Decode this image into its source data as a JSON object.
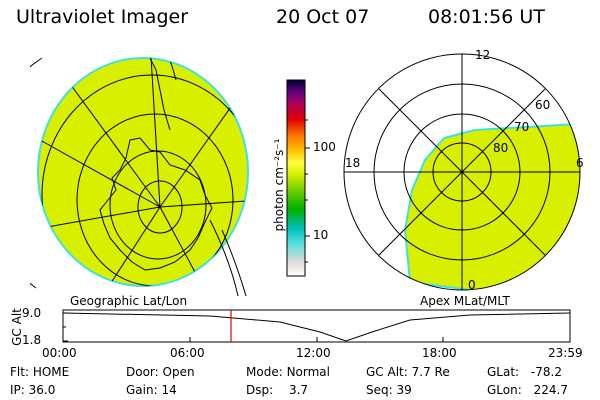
{
  "header": {
    "instrument": "Ultraviolet Imager",
    "date": "20 Oct 07",
    "time": "08:01:56 UT"
  },
  "colorbar": {
    "unit_label": "photon cm⁻²s⁻¹",
    "ticks": [
      "100",
      "10"
    ]
  },
  "geo_panel": {
    "label": "Geographic Lat/Lon"
  },
  "polar_panel": {
    "label": "Apex MLat/MLT",
    "hour_labels": [
      "12",
      "18",
      "6",
      "0"
    ],
    "lat_labels": [
      "60",
      "70",
      "80"
    ]
  },
  "altitude_plot": {
    "ylabel": "GC Alt",
    "yticks": [
      "9.0",
      "1.8"
    ],
    "xticks": [
      "00:00",
      "06:00",
      "12:00",
      "18:00",
      "23:59"
    ],
    "marker_time": "08:01:56"
  },
  "status": {
    "filter_label": "Flt:",
    "filter_value": "HOME",
    "ip_label": "IP:",
    "ip_value": "36.0",
    "door_label": "Door:",
    "door_value": "Open",
    "gain_label": "Gain:",
    "gain_value": "14",
    "mode_label": "Mode:",
    "mode_value": "Normal",
    "dsp_label": "Dsp:",
    "dsp_value": "3.7",
    "gcalt_label": "GC Alt:",
    "gcalt_value": "7.7 Re",
    "seq_label": "Seq:",
    "seq_value": "39",
    "glat_label": "GLat:",
    "glat_value": "-78.2",
    "glon_label": "GLon:",
    "glon_value": "224.7"
  },
  "colors": {
    "image_fill": "#d8f000",
    "image_edge": "#40e0e0",
    "marker": "#e00000"
  }
}
